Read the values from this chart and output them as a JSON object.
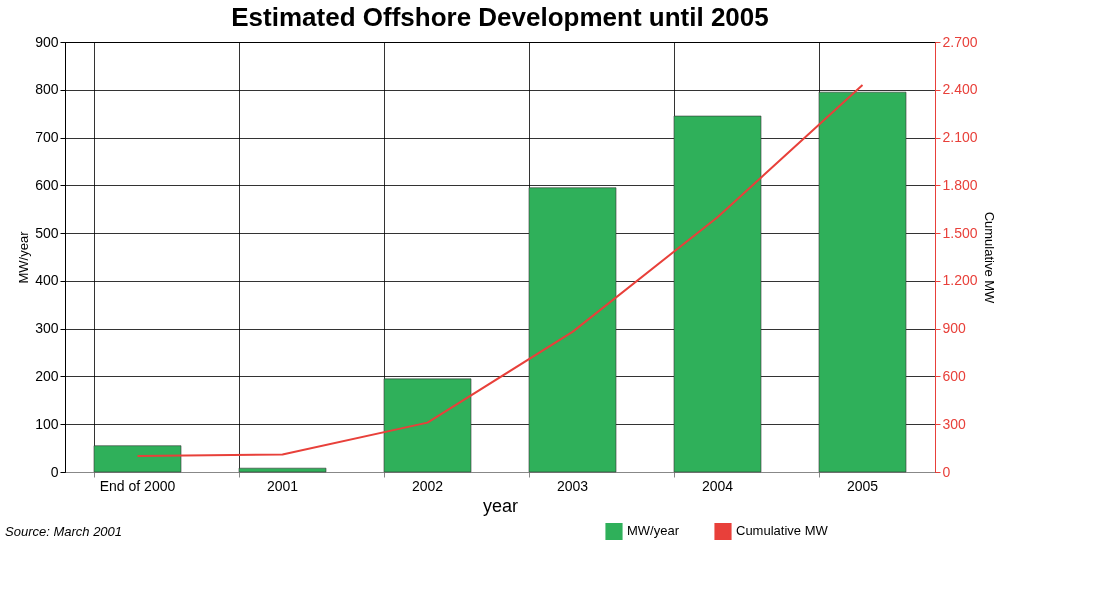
{
  "chart_data": {
    "type": "bar",
    "title": "Estimated Offshore Development until 2005",
    "xlabel": "year",
    "ylabel": "MW/year",
    "y2label": "Cumulative MW",
    "categories": [
      "End of 2000",
      "2001",
      "2002",
      "2003",
      "2004",
      "2005"
    ],
    "series": [
      {
        "name": "MW/year",
        "color": "#2fb05a",
        "values": [
          55,
          8,
          195,
          595,
          745,
          795
        ]
      },
      {
        "name": "Cumulative MW",
        "type": "line",
        "axis": "y2",
        "color": "#e8403a",
        "marker": "none",
        "values": [
          100,
          110,
          310,
          880,
          1600,
          2430
        ]
      }
    ],
    "ylim": [
      0,
      900
    ],
    "yticks": [
      0,
      100,
      200,
      300,
      400,
      500,
      600,
      700,
      800,
      900
    ],
    "y2lim": [
      0,
      2700
    ],
    "y2ticks": [
      0,
      300,
      600,
      900,
      {
        "value": 1200,
        "label": "1.200"
      },
      {
        "value": 1500,
        "label": "1.500"
      },
      {
        "value": 1800,
        "label": "1.800"
      },
      {
        "value": 2100,
        "label": "2.100"
      },
      {
        "value": 2400,
        "label": "2.400"
      },
      {
        "value": 2700,
        "label": "2.700"
      }
    ],
    "grid": true,
    "legend": "bottom right",
    "annotations": [
      "Source: March 2001"
    ]
  }
}
